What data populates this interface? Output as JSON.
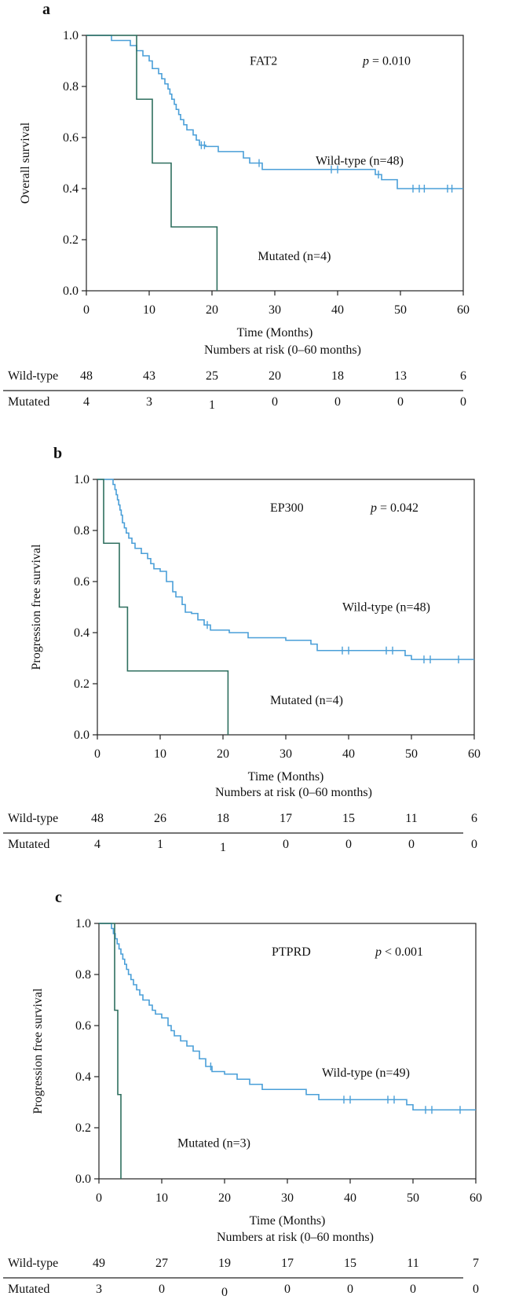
{
  "colors": {
    "wildtype": "#4a9fd8",
    "mutated": "#2f6f5f",
    "axis": "#222222"
  },
  "chart_data": [
    {
      "panel_label": "a",
      "type": "line",
      "subtype": "kaplan-meier",
      "gene": "FAT2",
      "p_prefix": "p",
      "p_value": " = 0.010",
      "ylabel": "Overall survival",
      "xlabel": "Time (Months)",
      "xlim": [
        0,
        60
      ],
      "ylim": [
        0,
        1
      ],
      "xticks": [
        0,
        10,
        20,
        30,
        40,
        50,
        60
      ],
      "yticks": [
        0.0,
        0.2,
        0.4,
        0.6,
        0.8,
        1.0
      ],
      "ytick_labels": [
        "0.0",
        "0.2",
        "0.4",
        "0.6",
        "0.8",
        "1.0"
      ],
      "series": [
        {
          "name": "Wild-type (n=48)",
          "color_key": "wildtype",
          "steps": [
            [
              0,
              1.0
            ],
            [
              4,
              0.98
            ],
            [
              7,
              0.96
            ],
            [
              8,
              0.94
            ],
            [
              9,
              0.92
            ],
            [
              10,
              0.9
            ],
            [
              10.5,
              0.87
            ],
            [
              11.5,
              0.85
            ],
            [
              12,
              0.83
            ],
            [
              12.5,
              0.81
            ],
            [
              13,
              0.79
            ],
            [
              13.3,
              0.77
            ],
            [
              13.6,
              0.75
            ],
            [
              14,
              0.73
            ],
            [
              14.3,
              0.71
            ],
            [
              14.7,
              0.69
            ],
            [
              15,
              0.67
            ],
            [
              15.5,
              0.65
            ],
            [
              16,
              0.63
            ],
            [
              17,
              0.61
            ],
            [
              17.5,
              0.59
            ],
            [
              18,
              0.57
            ],
            [
              19,
              0.565
            ],
            [
              21,
              0.545
            ],
            [
              25,
              0.52
            ],
            [
              26,
              0.5
            ],
            [
              28,
              0.475
            ],
            [
              46,
              0.455
            ],
            [
              47,
              0.435
            ],
            [
              49.5,
              0.4
            ],
            [
              60,
              0.4
            ]
          ],
          "censors": [
            18.3,
            18.8,
            27.5,
            39,
            40,
            46.5,
            52,
            53,
            53.8,
            57.5,
            58.2
          ]
        },
        {
          "name": "Mutated (n=4)",
          "color_key": "mutated",
          "steps": [
            [
              0,
              1.0
            ],
            [
              8,
              0.75
            ],
            [
              10.5,
              0.5
            ],
            [
              13.5,
              0.25
            ],
            [
              20.8,
              0.0
            ]
          ],
          "censors": []
        }
      ],
      "series_labels": [
        {
          "text": "Wild-type (n=48)",
          "x": 36.5,
          "y": 0.51
        },
        {
          "text": "Mutated (n=4)",
          "x": 27.3,
          "y": 0.135
        }
      ],
      "gene_label_pos": {
        "x": 26,
        "y": 0.9
      },
      "p_label_pos": {
        "x": 44,
        "y": 0.9
      },
      "risk_table": {
        "title": "Numbers at risk (0–60 months)",
        "times": [
          0,
          10,
          20,
          30,
          40,
          50,
          60
        ],
        "rows": [
          {
            "label": "Wild-type",
            "values": [
              "48",
              "43",
              "25",
              "20",
              "18",
              "13",
              "6"
            ]
          },
          {
            "label": "Mutated",
            "values": [
              "4",
              "3",
              "1",
              "0",
              "0",
              "0",
              "0"
            ]
          }
        ]
      }
    },
    {
      "panel_label": "b",
      "type": "line",
      "subtype": "kaplan-meier",
      "gene": "EP300",
      "p_prefix": "p",
      "p_value": " = 0.042",
      "ylabel": "Progression free survival",
      "xlabel": "Time (Months)",
      "xlim": [
        0,
        60
      ],
      "ylim": [
        0,
        1
      ],
      "xticks": [
        0,
        10,
        20,
        30,
        40,
        50,
        60
      ],
      "yticks": [
        0.0,
        0.2,
        0.4,
        0.6,
        0.8,
        1.0
      ],
      "ytick_labels": [
        "0.0",
        "0.2",
        "0.4",
        "0.6",
        "0.8",
        "1.0"
      ],
      "series": [
        {
          "name": "Wild-type (n=48)",
          "color_key": "wildtype",
          "steps": [
            [
              0,
              1.0
            ],
            [
              2.5,
              0.98
            ],
            [
              2.8,
              0.96
            ],
            [
              3,
              0.94
            ],
            [
              3.2,
              0.92
            ],
            [
              3.4,
              0.9
            ],
            [
              3.6,
              0.88
            ],
            [
              3.8,
              0.86
            ],
            [
              4,
              0.83
            ],
            [
              4.3,
              0.81
            ],
            [
              4.6,
              0.79
            ],
            [
              5,
              0.77
            ],
            [
              5.5,
              0.75
            ],
            [
              6,
              0.73
            ],
            [
              7,
              0.71
            ],
            [
              8,
              0.69
            ],
            [
              8.5,
              0.67
            ],
            [
              9,
              0.65
            ],
            [
              10,
              0.64
            ],
            [
              11,
              0.6
            ],
            [
              12,
              0.56
            ],
            [
              12.5,
              0.54
            ],
            [
              13.5,
              0.51
            ],
            [
              14,
              0.48
            ],
            [
              15,
              0.475
            ],
            [
              16,
              0.45
            ],
            [
              17,
              0.43
            ],
            [
              18,
              0.41
            ],
            [
              21,
              0.4
            ],
            [
              24,
              0.38
            ],
            [
              30,
              0.37
            ],
            [
              34,
              0.355
            ],
            [
              35,
              0.33
            ],
            [
              49,
              0.31
            ],
            [
              50,
              0.295
            ],
            [
              60,
              0.295
            ]
          ],
          "censors": [
            17.5,
            39,
            40,
            46,
            47,
            52,
            53,
            57.5
          ]
        },
        {
          "name": "Mutated (n=4)",
          "color_key": "mutated",
          "steps": [
            [
              0,
              1.0
            ],
            [
              1,
              0.75
            ],
            [
              3.5,
              0.5
            ],
            [
              4.8,
              0.25
            ],
            [
              20.8,
              0.0
            ]
          ],
          "censors": []
        }
      ],
      "series_labels": [
        {
          "text": "Wild-type (n=48)",
          "x": 39,
          "y": 0.5
        },
        {
          "text": "Mutated (n=4)",
          "x": 27.5,
          "y": 0.135
        }
      ],
      "gene_label_pos": {
        "x": 27.5,
        "y": 0.89
      },
      "p_label_pos": {
        "x": 43.5,
        "y": 0.89
      },
      "risk_table": {
        "title": "Numbers at risk (0–60 months)",
        "times": [
          0,
          10,
          20,
          30,
          40,
          50,
          60
        ],
        "rows": [
          {
            "label": "Wild-type",
            "values": [
              "48",
              "26",
              "18",
              "17",
              "15",
              "11",
              "6"
            ]
          },
          {
            "label": "Mutated",
            "values": [
              "4",
              "1",
              "1",
              "0",
              "0",
              "0",
              "0"
            ]
          }
        ]
      }
    },
    {
      "panel_label": "c",
      "type": "line",
      "subtype": "kaplan-meier",
      "gene": "PTPRD",
      "p_prefix": "p",
      "p_value": " < 0.001",
      "ylabel": "Progression free survival",
      "xlabel": "Time (Months)",
      "xlim": [
        0,
        60
      ],
      "ylim": [
        0,
        1
      ],
      "xticks": [
        0,
        10,
        20,
        30,
        40,
        50,
        60
      ],
      "yticks": [
        0.0,
        0.2,
        0.4,
        0.6,
        0.8,
        1.0
      ],
      "ytick_labels": [
        "0.0",
        "0.2",
        "0.4",
        "0.6",
        "0.8",
        "1.0"
      ],
      "series": [
        {
          "name": "Wild-type (n=49)",
          "color_key": "wildtype",
          "steps": [
            [
              0,
              1.0
            ],
            [
              2,
              0.98
            ],
            [
              2.3,
              0.96
            ],
            [
              2.6,
              0.94
            ],
            [
              2.9,
              0.92
            ],
            [
              3.2,
              0.9
            ],
            [
              3.5,
              0.88
            ],
            [
              3.8,
              0.86
            ],
            [
              4.1,
              0.84
            ],
            [
              4.4,
              0.82
            ],
            [
              4.7,
              0.8
            ],
            [
              5.1,
              0.78
            ],
            [
              5.5,
              0.76
            ],
            [
              6,
              0.74
            ],
            [
              6.5,
              0.72
            ],
            [
              7,
              0.7
            ],
            [
              8,
              0.68
            ],
            [
              8.5,
              0.66
            ],
            [
              9,
              0.645
            ],
            [
              10,
              0.63
            ],
            [
              11,
              0.6
            ],
            [
              11.5,
              0.58
            ],
            [
              12,
              0.56
            ],
            [
              13,
              0.54
            ],
            [
              14,
              0.52
            ],
            [
              15,
              0.5
            ],
            [
              16,
              0.47
            ],
            [
              17,
              0.44
            ],
            [
              18,
              0.42
            ],
            [
              20,
              0.41
            ],
            [
              22,
              0.39
            ],
            [
              24,
              0.37
            ],
            [
              26,
              0.35
            ],
            [
              33,
              0.33
            ],
            [
              35,
              0.31
            ],
            [
              49,
              0.29
            ],
            [
              50,
              0.27
            ],
            [
              60,
              0.27
            ]
          ],
          "censors": [
            17.8,
            39,
            40,
            46,
            47,
            52,
            53,
            57.5
          ]
        },
        {
          "name": "Mutated (n=3)",
          "color_key": "mutated",
          "steps": [
            [
              0,
              1.0
            ],
            [
              2.5,
              0.66
            ],
            [
              3,
              0.33
            ],
            [
              3.5,
              0.0
            ]
          ],
          "censors": []
        }
      ],
      "series_labels": [
        {
          "text": "Wild-type (n=49)",
          "x": 35.5,
          "y": 0.415
        },
        {
          "text": "Mutated (n=3)",
          "x": 12.5,
          "y": 0.14
        }
      ],
      "gene_label_pos": {
        "x": 27.5,
        "y": 0.89
      },
      "p_label_pos": {
        "x": 44,
        "y": 0.89
      },
      "risk_table": {
        "title": "Numbers at risk (0–60 months)",
        "times": [
          0,
          10,
          20,
          30,
          40,
          50,
          60
        ],
        "rows": [
          {
            "label": "Wild-type",
            "values": [
              "49",
              "27",
              "19",
              "17",
              "15",
              "11",
              "7"
            ]
          },
          {
            "label": "Mutated",
            "values": [
              "3",
              "0",
              "0",
              "0",
              "0",
              "0",
              "0"
            ]
          }
        ]
      }
    }
  ]
}
